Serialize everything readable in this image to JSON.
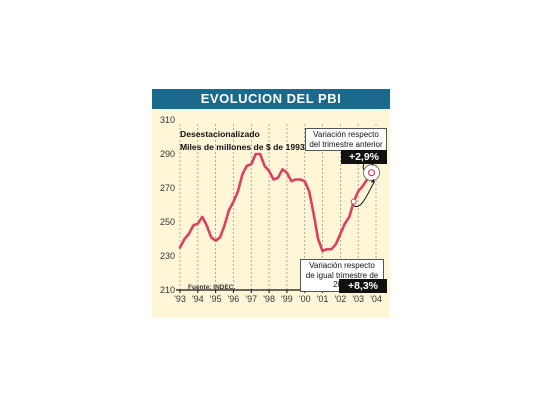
{
  "header": {
    "title": "EVOLUCION DEL PBI"
  },
  "chart_data": {
    "type": "line",
    "title": "EVOLUCION DEL PBI",
    "subtitle_line1": "Desestacionalizado",
    "subtitle_line2": "Miles de millones de $ de 1993",
    "ylim": [
      210,
      310
    ],
    "y_ticks": [
      210,
      230,
      250,
      270,
      290,
      310
    ],
    "x_tick_labels": [
      "'93",
      "'94",
      "'95",
      "'96",
      "'97",
      "'98",
      "'99",
      "'00",
      "'01",
      "'02",
      "'03",
      "'04"
    ],
    "grid": "vertical dashed lines at each year",
    "series": [
      {
        "color": "#d9415f",
        "x": [
          1993.0,
          1993.25,
          1993.5,
          1993.75,
          1994.0,
          1994.25,
          1994.5,
          1994.75,
          1995.0,
          1995.25,
          1995.5,
          1995.75,
          1996.0,
          1996.25,
          1996.5,
          1996.75,
          1997.0,
          1997.25,
          1997.5,
          1997.75,
          1998.0,
          1998.25,
          1998.5,
          1998.75,
          1999.0,
          1999.25,
          1999.5,
          1999.75,
          2000.0,
          2000.25,
          2000.5,
          2000.75,
          2001.0,
          2001.25,
          2001.5,
          2001.75,
          2002.0,
          2002.25,
          2002.5,
          2002.75,
          2003.0,
          2003.25,
          2003.5,
          2003.75
        ],
        "values": [
          235,
          240,
          243,
          248,
          249,
          253,
          248,
          241,
          239,
          241,
          248,
          257,
          262,
          268,
          278,
          283,
          284,
          290,
          290,
          283,
          280,
          275,
          276,
          281,
          279,
          274,
          275,
          275,
          274,
          268,
          255,
          240,
          233,
          234,
          234,
          237,
          243,
          249,
          253,
          262,
          268,
          271,
          275,
          279
        ]
      }
    ],
    "annotations": [
      {
        "text": "Variación respecto del trimestre anterior",
        "value": "+2,9%"
      },
      {
        "text": "Variación respecto de igual trimestre de 2003",
        "value": "+8,3%"
      }
    ],
    "source": "Fuente: INDEC."
  }
}
